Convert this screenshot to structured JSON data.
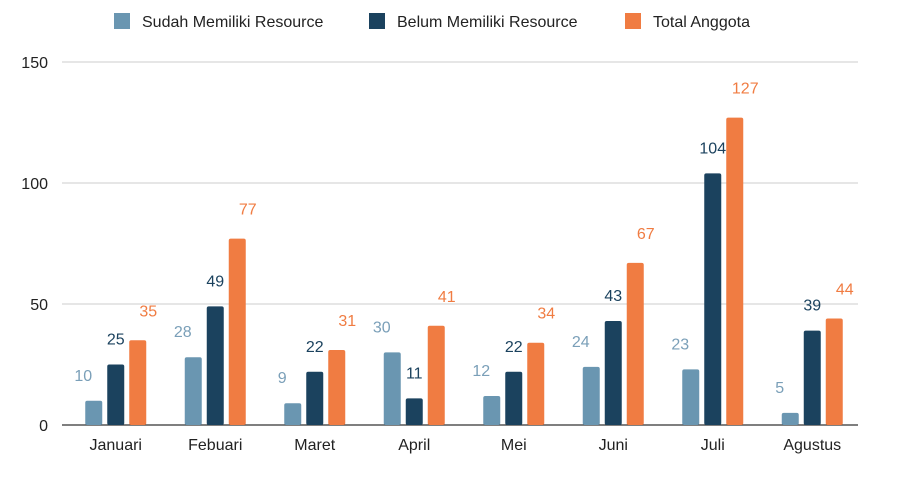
{
  "chart_data": {
    "type": "bar",
    "title": "",
    "xlabel": "",
    "ylabel": "",
    "ylim": [
      0,
      150
    ],
    "yticks": [
      0,
      50,
      100,
      150
    ],
    "grid": true,
    "legend_position": "top",
    "categories": [
      "Januari",
      "Febuari",
      "Maret",
      "April",
      "Mei",
      "Juni",
      "Juli",
      "Agustus"
    ],
    "series": [
      {
        "name": "Sudah Memiliki Resource",
        "color": "#6a96b1",
        "label_color": "#7a9fb8",
        "values": [
          10,
          28,
          9,
          30,
          12,
          24,
          23,
          5
        ]
      },
      {
        "name": "Belum Memiliki Resource",
        "color": "#1b425e",
        "label_color": "#1b425e",
        "values": [
          25,
          49,
          22,
          11,
          22,
          43,
          104,
          39
        ]
      },
      {
        "name": "Total Anggota",
        "color": "#f07c42",
        "label_color": "#f07c42",
        "values": [
          35,
          77,
          31,
          41,
          34,
          67,
          127,
          44
        ]
      }
    ]
  }
}
